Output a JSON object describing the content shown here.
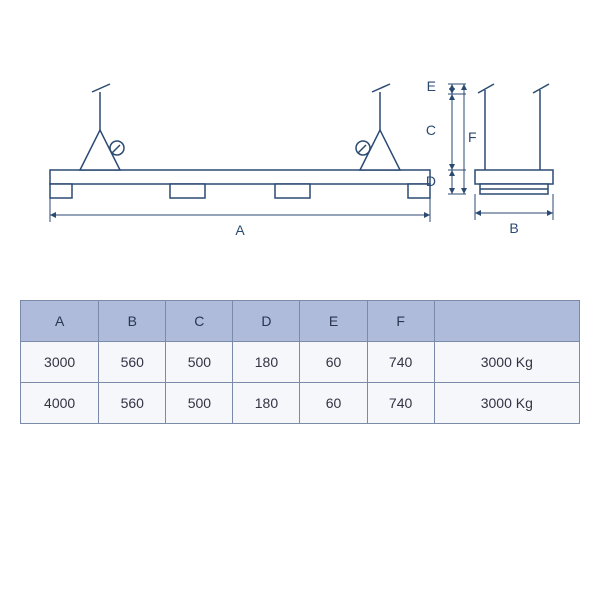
{
  "diagram": {
    "labels": {
      "A": "A",
      "B": "B",
      "C": "C",
      "D": "D",
      "E": "E",
      "F": "F"
    },
    "colors": {
      "stroke": "#2b4a72",
      "header_bg": "#aebbdb",
      "row_bg": "#f6f7fb",
      "border": "#7a8aa8"
    }
  },
  "table": {
    "columns": [
      "A",
      "B",
      "C",
      "D",
      "E",
      "F",
      "capacity"
    ],
    "headers": {
      "A": "A",
      "B": "B",
      "C": "C",
      "D": "D",
      "E": "E",
      "F": "F",
      "capacity": ""
    },
    "col_widths_pct": [
      14,
      12,
      12,
      12,
      12,
      12,
      26
    ],
    "rows": [
      {
        "A": "3000",
        "B": "560",
        "C": "500",
        "D": "180",
        "E": "60",
        "F": "740",
        "capacity": "3000 Kg"
      },
      {
        "A": "4000",
        "B": "560",
        "C": "500",
        "D": "180",
        "E": "60",
        "F": "740",
        "capacity": "3000 Kg"
      }
    ]
  }
}
